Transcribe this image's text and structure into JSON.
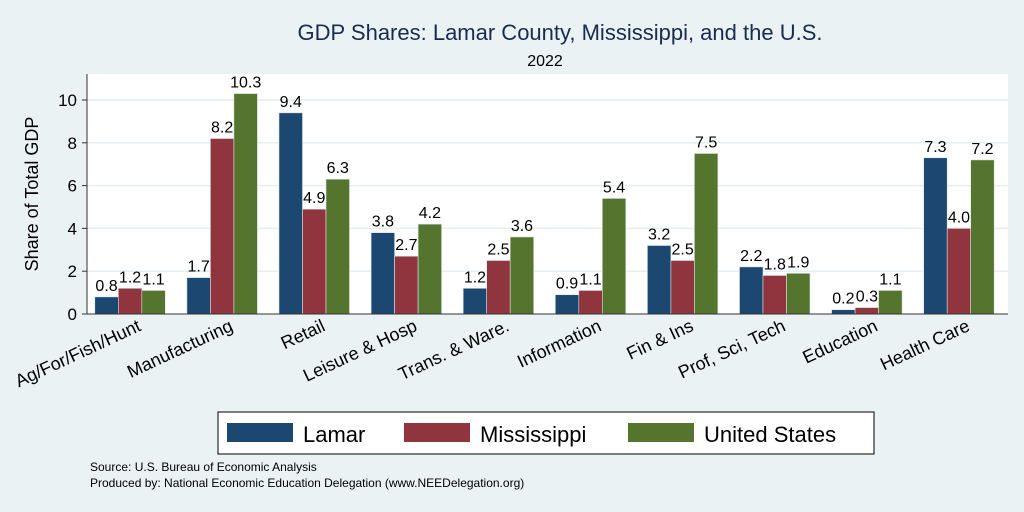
{
  "chart_data": {
    "type": "bar",
    "title": "GDP Shares: Lamar County, Mississippi, and the U.S.",
    "subtitle": "2022",
    "xlabel": "",
    "ylabel": "Share of Total GDP",
    "ylim": [
      0,
      11
    ],
    "yticks": [
      0,
      2,
      4,
      6,
      8,
      10
    ],
    "grid": true,
    "legend_position": "bottom",
    "categories": [
      "Ag/For/Fish/Hunt",
      "Manufacturing",
      "Retail",
      "Leisure & Hosp",
      "Trans. & Ware.",
      "Information",
      "Fin & Ins",
      "Prof, Sci, Tech",
      "Education",
      "Health Care"
    ],
    "series": [
      {
        "name": "Lamar",
        "color": "#1c4770",
        "values": [
          0.8,
          1.7,
          9.4,
          3.8,
          1.2,
          0.9,
          3.2,
          2.2,
          0.2,
          7.3
        ],
        "labels": [
          "0.8",
          "1.7",
          "9.4",
          "3.8",
          "1.2",
          "0.9",
          "3.2",
          "2.2",
          "0.2",
          "7.3"
        ]
      },
      {
        "name": "Mississippi",
        "color": "#90353d",
        "values": [
          1.2,
          8.2,
          4.9,
          2.7,
          2.5,
          1.1,
          2.5,
          1.8,
          0.3,
          4.0
        ],
        "labels": [
          "1.2",
          "8.2",
          "4.9",
          "2.7",
          "2.5",
          "1.1",
          "2.5",
          "1.8",
          "0.3",
          "4.0"
        ]
      },
      {
        "name": "United States",
        "color": "#55752f",
        "values": [
          1.1,
          10.3,
          6.3,
          4.2,
          3.6,
          5.4,
          7.5,
          1.9,
          1.1,
          7.2
        ],
        "labels": [
          "1.1",
          "10.3",
          "6.3",
          "4.2",
          "3.6",
          "5.4",
          "7.5",
          "1.9",
          "1.1",
          "7.2"
        ]
      }
    ],
    "notes": [
      "Source: U.S. Bureau of Economic Analysis",
      "Produced by: National Economic Education Delegation (www.NEEDelegation.org)"
    ]
  }
}
